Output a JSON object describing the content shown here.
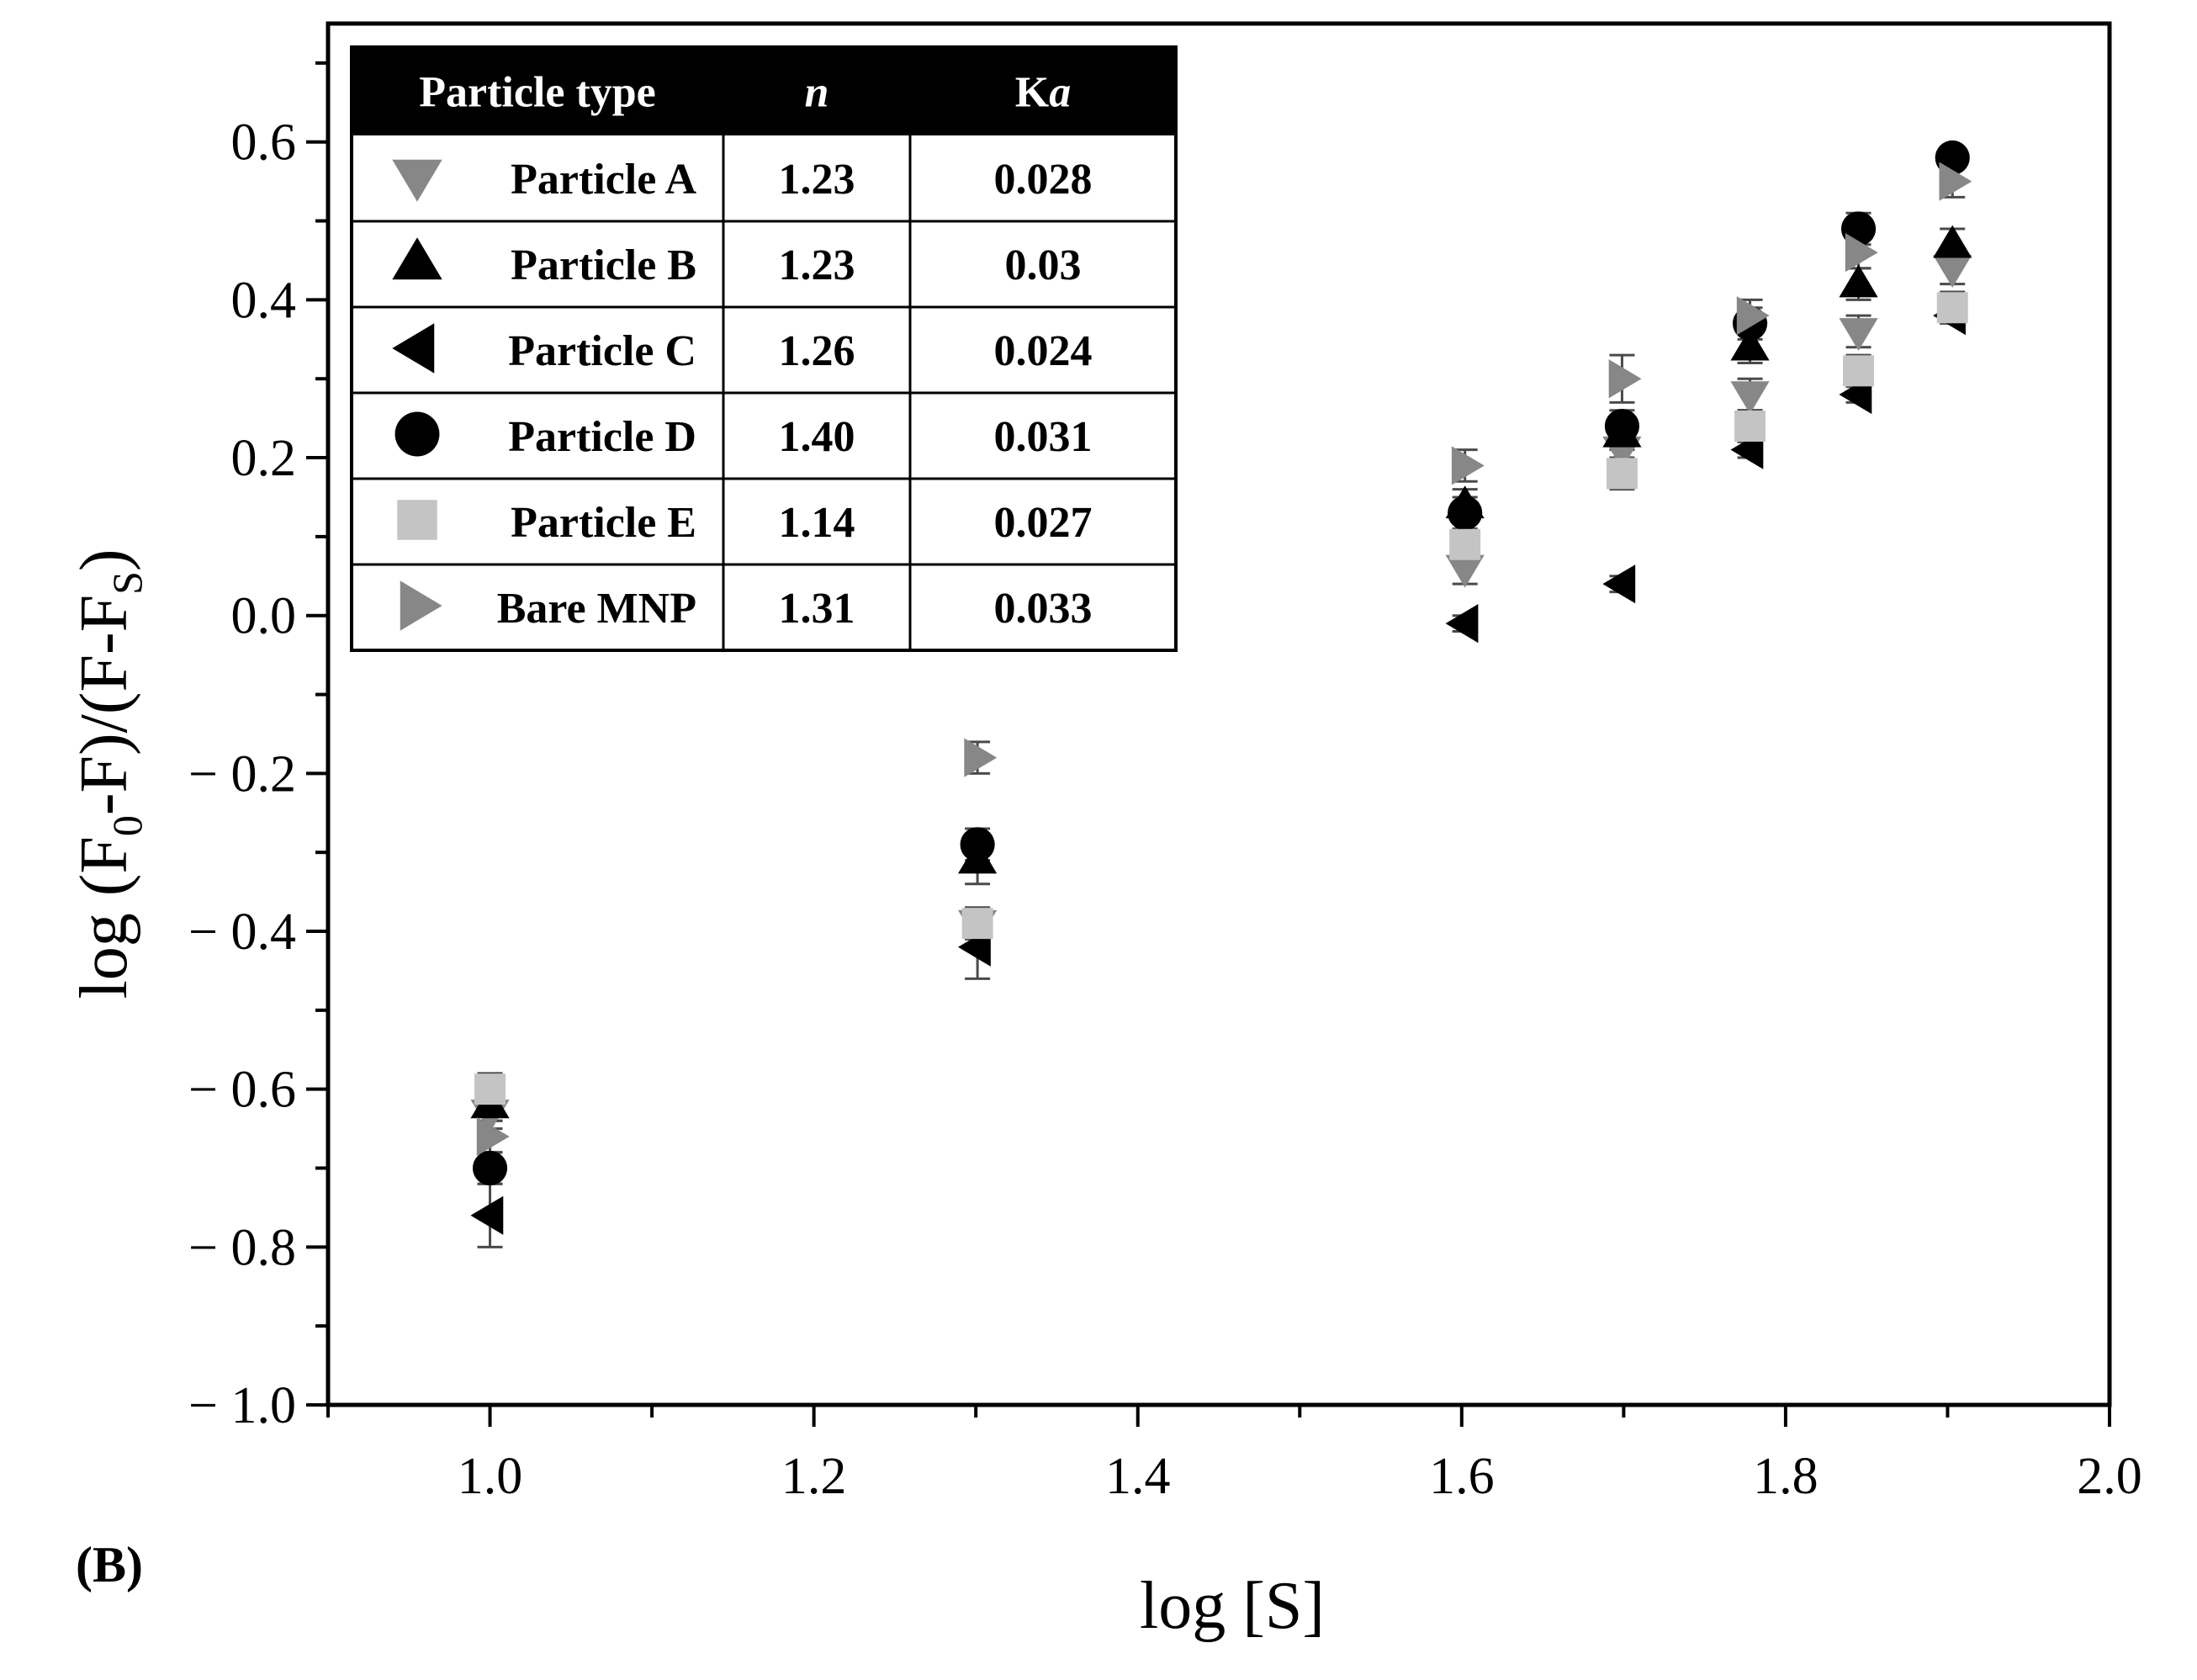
{
  "chart_data": {
    "type": "scatter",
    "panel_label": "(B)",
    "xlabel": "log [S]",
    "ylabel": {
      "prefix": "log (F",
      "sub1": "0",
      "mid": "-F)/(F-F",
      "sub2": "S",
      "suffix": ")"
    },
    "xlim": [
      0.9,
      2.0
    ],
    "ylim": [
      -1.0,
      0.75
    ],
    "x_ticks": [
      1.0,
      1.2,
      1.4,
      1.6,
      1.8,
      2.0
    ],
    "x_tick_labels": [
      "1.0",
      "1.2",
      "1.4",
      "1.6",
      "1.8",
      "2.0"
    ],
    "y_ticks": [
      0.6,
      0.4,
      0.2,
      0.0,
      -0.2,
      -0.4,
      -0.6,
      -0.8,
      -1.0
    ],
    "y_tick_labels": [
      "0.6",
      "0.4",
      "0.2",
      "0.0",
      "− 0.2",
      "− 0.4",
      "− 0.6",
      "− 0.8",
      "− 1.0"
    ],
    "grid": false,
    "legend_table": {
      "position": "top-left",
      "headers": {
        "type": "Particle type",
        "n": "n",
        "ka_prefix": "K",
        "ka_italic": "a"
      },
      "rows": [
        {
          "name": "Particle A",
          "n": "1.23",
          "ka": "0.028"
        },
        {
          "name": "Particle B",
          "n": "1.23",
          "ka": "0.03"
        },
        {
          "name": "Particle C",
          "n": "1.26",
          "ka": "0.024"
        },
        {
          "name": "Particle D",
          "n": "1.40",
          "ka": "0.031"
        },
        {
          "name": "Particle E",
          "n": "1.14",
          "ka": "0.027"
        },
        {
          "name": "Bare MNP",
          "n": "1.31",
          "ka": "0.033"
        }
      ]
    },
    "x": [
      1.0,
      1.301,
      1.602,
      1.699,
      1.778,
      1.845,
      1.903
    ],
    "series": [
      {
        "name": "Particle A",
        "marker": "triangle-down",
        "color": "#878787",
        "values": [
          -0.63,
          -0.39,
          0.06,
          0.21,
          0.28,
          0.36,
          0.44
        ],
        "errors": [
          0.02,
          0.02,
          0.02,
          0.02,
          0.02,
          0.02,
          0.02
        ]
      },
      {
        "name": "Particle B",
        "marker": "triangle-up",
        "color": "#000000",
        "values": [
          -0.62,
          -0.31,
          0.14,
          0.23,
          0.34,
          0.42,
          0.47
        ],
        "errors": [
          0.02,
          0.03,
          0.02,
          0.02,
          0.02,
          0.02,
          0.02
        ]
      },
      {
        "name": "Particle C",
        "marker": "triangle-left",
        "color": "#000000",
        "values": [
          -0.76,
          -0.42,
          -0.01,
          0.04,
          0.21,
          0.28,
          0.38
        ],
        "errors": [
          0.04,
          0.04,
          0.01,
          0.01,
          0.01,
          0.01,
          0.01
        ]
      },
      {
        "name": "Particle D",
        "marker": "circle",
        "color": "#000000",
        "values": [
          -0.7,
          -0.29,
          0.13,
          0.24,
          0.37,
          0.49,
          0.58
        ],
        "errors": [
          0.02,
          0.02,
          0.02,
          0.02,
          0.02,
          0.02,
          0.01
        ]
      },
      {
        "name": "Particle E",
        "marker": "square",
        "color": "#c4c4c4",
        "values": [
          -0.6,
          -0.39,
          0.09,
          0.18,
          0.24,
          0.31,
          0.39
        ],
        "errors": [
          0.02,
          0.02,
          0.02,
          0.02,
          0.02,
          0.02,
          0.02
        ]
      },
      {
        "name": "Bare MNP",
        "marker": "triangle-right",
        "color": "#878787",
        "values": [
          -0.66,
          -0.18,
          0.19,
          0.3,
          0.38,
          0.46,
          0.55
        ],
        "errors": [
          0.02,
          0.02,
          0.02,
          0.03,
          0.02,
          0.02,
          0.02
        ]
      }
    ]
  }
}
